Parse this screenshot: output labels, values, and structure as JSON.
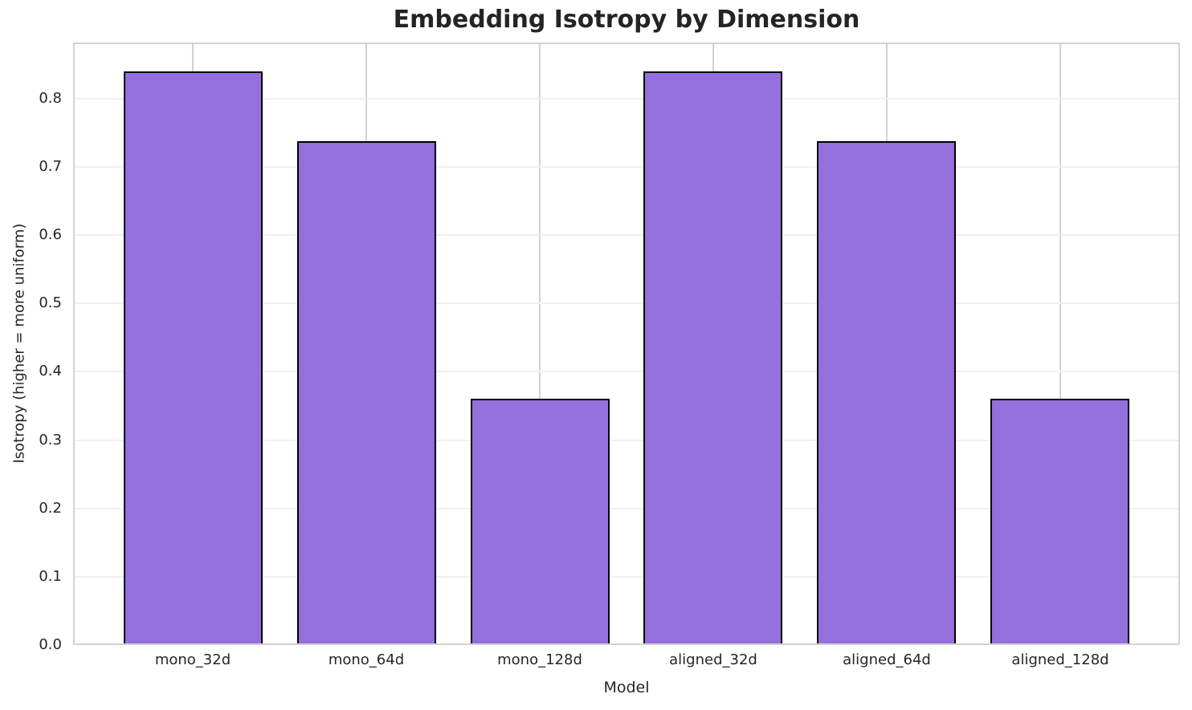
{
  "chart_data": {
    "type": "bar",
    "title": "Embedding Isotropy by Dimension",
    "xlabel": "Model",
    "ylabel": "Isotropy (higher = more uniform)",
    "categories": [
      "mono_32d",
      "mono_64d",
      "mono_128d",
      "aligned_32d",
      "aligned_64d",
      "aligned_128d"
    ],
    "values": [
      0.84,
      0.737,
      0.36,
      0.84,
      0.737,
      0.36
    ],
    "ylim": [
      0,
      0.882
    ],
    "yticks": [
      0.0,
      0.1,
      0.2,
      0.3,
      0.4,
      0.5,
      0.6,
      0.7,
      0.8
    ],
    "grid": true,
    "legend": "none",
    "colors": {
      "bar_fill": "#9370DB",
      "bar_edge": "#000000",
      "h_grid": "#f0f0f0",
      "v_grid": "#d2d2d2",
      "spine": "#d2d2d2",
      "text": "#262626",
      "background": "#ffffff"
    }
  }
}
